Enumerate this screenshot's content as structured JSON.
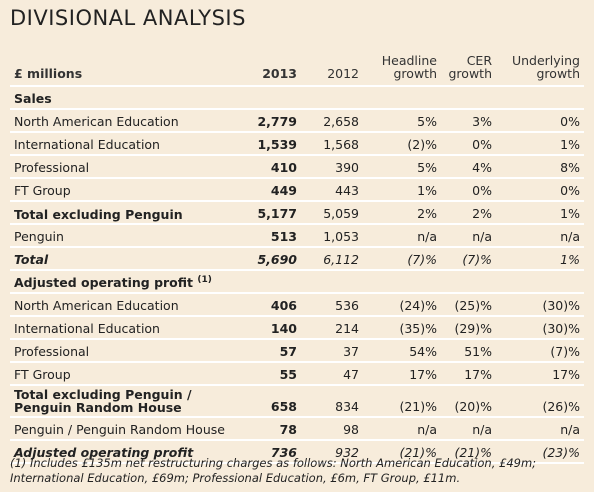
{
  "title": "DIVISIONAL ANALYSIS",
  "table": {
    "header": [
      "£ millions",
      "2013",
      "2012",
      "Headline growth",
      "CER growth",
      "Underlying growth"
    ],
    "sections": [
      {
        "title": "Sales",
        "rows": [
          [
            "North American Education",
            "2,779",
            "2,658",
            "5%",
            "3%",
            "0%"
          ],
          [
            "International Education",
            "1,539",
            "1,568",
            "(2)%",
            "0%",
            "1%"
          ],
          [
            "Professional",
            "410",
            "390",
            "5%",
            "4%",
            "8%"
          ],
          [
            "FT Group",
            "449",
            "443",
            "1%",
            "0%",
            "0%"
          ],
          [
            "Total excluding Penguin",
            "5,177",
            "5,059",
            "2%",
            "2%",
            "1%"
          ],
          [
            "Penguin",
            "513",
            "1,053",
            "n/a",
            "n/a",
            "n/a"
          ],
          [
            "Total",
            "5,690",
            "6,112",
            "(7)%",
            "(7)%",
            "1%"
          ]
        ]
      },
      {
        "title": "Adjusted operating profit",
        "note": "(1)",
        "rows": [
          [
            "North American Education",
            "406",
            "536",
            "(24)%",
            "(25)%",
            "(30)%"
          ],
          [
            "International Education",
            "140",
            "214",
            "(35)%",
            "(29)%",
            "(30)%"
          ],
          [
            "Professional",
            "57",
            "37",
            "54%",
            "51%",
            "(7)%"
          ],
          [
            "FT Group",
            "55",
            "47",
            "17%",
            "17%",
            "17%"
          ],
          [
            "Total excluding Penguin / Penguin Random House",
            "658",
            "834",
            "(21)%",
            "(20)%",
            "(26)%"
          ],
          [
            "Penguin / Penguin Random House",
            "78",
            "98",
            "n/a",
            "n/a",
            "n/a"
          ],
          [
            "Adjusted operating profit",
            "736",
            "932",
            "(21)%",
            "(21)%",
            "(23)%"
          ]
        ]
      }
    ]
  },
  "footnote": "(1) Includes £135m net restructuring charges as follows: North American Education, £49m; International Education, £69m; Professional Education, £6m, FT Group, £11m."
}
